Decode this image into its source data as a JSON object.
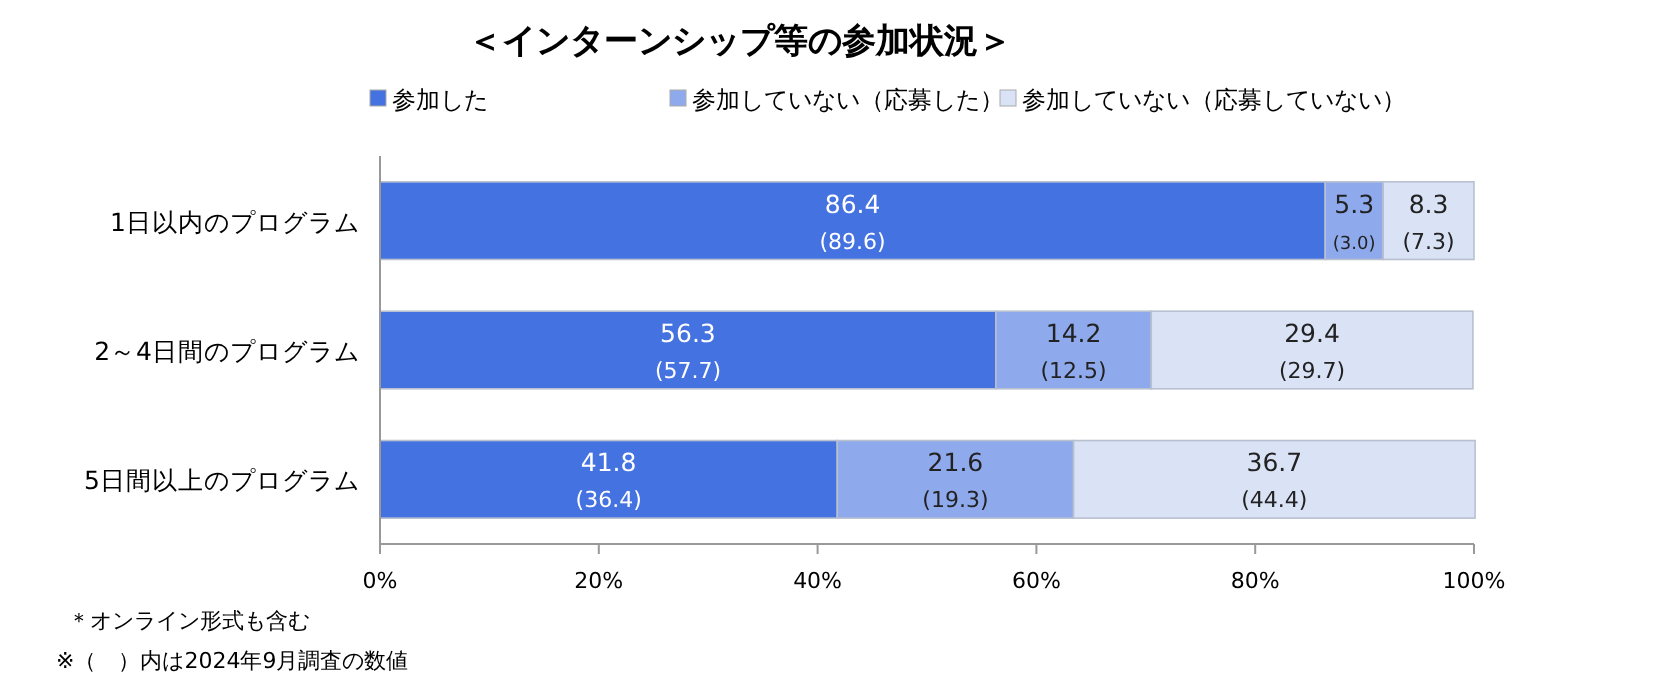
{
  "chart_data": {
    "type": "bar",
    "orientation": "horizontal",
    "stacked": true,
    "title": "＜インターンシップ等の参加状況＞",
    "categories": [
      "1日以内のプログラム",
      "2～4日間のプログラム",
      "5日間以上のプログラム"
    ],
    "series": [
      {
        "name": "参加した",
        "color": "#4472e0",
        "values": [
          86.4,
          56.3,
          41.8
        ],
        "value_labels": [
          "86.4\n(89.6)",
          "56.3\n(57.7)",
          "41.8\n(36.4)"
        ]
      },
      {
        "name": "参加していない（応募した）",
        "color": "#8eaaec",
        "values": [
          5.3,
          14.2,
          21.6
        ],
        "value_labels": [
          "5.3\n(3.0)",
          "14.2\n(12.5)",
          "21.6\n(19.3)"
        ]
      },
      {
        "name": "参加していない（応募していない）",
        "color": "#dae2f6",
        "values": [
          8.3,
          29.4,
          36.7
        ],
        "value_labels": [
          "8.3\n(7.3)",
          "29.4\n(29.7)",
          "36.7\n(44.4)"
        ]
      }
    ],
    "xlim": [
      0,
      100
    ],
    "xticks": [
      {
        "value": 0,
        "label": "0%"
      },
      {
        "value": 20,
        "label": "20%"
      },
      {
        "value": 40,
        "label": "40%"
      },
      {
        "value": 60,
        "label": "60%"
      },
      {
        "value": 80,
        "label": "80%"
      },
      {
        "value": 100,
        "label": "100%"
      }
    ],
    "legend": "top",
    "annotations": [
      "＊オンライン形式も含む",
      "※（　）内は2024年9月調査の数値"
    ]
  }
}
